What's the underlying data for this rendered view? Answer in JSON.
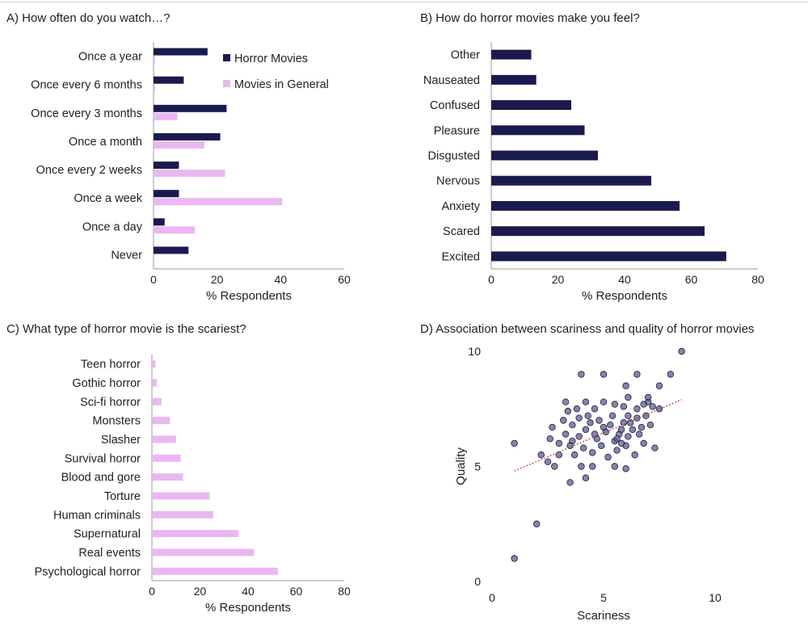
{
  "colors": {
    "horror": "#1b1a4f",
    "general": "#e9b8f1",
    "scatter_fill": "#5c5c8a",
    "scatter_stroke": "#1b1a4f",
    "trend": "#c0392b",
    "axis": "#9a9a9a"
  },
  "chart_data": [
    {
      "id": "A",
      "type": "bar",
      "title": "A) How often do you watch…?",
      "categories": [
        "Once a year",
        "Once every 6 months",
        "Once every 3 months",
        "Once a month",
        "Once every 2 weeks",
        "Once a week",
        "Once a day",
        "Never"
      ],
      "series": [
        {
          "name": "Horror Movies",
          "values": [
            17,
            9.5,
            23,
            21,
            8,
            8,
            3.5,
            11
          ]
        },
        {
          "name": "Movies in General",
          "values": [
            0.5,
            0.5,
            7.5,
            16,
            22.5,
            40.5,
            13,
            0
          ]
        }
      ],
      "xlabel": "% Respondents",
      "xlim": [
        0,
        60
      ],
      "xticks": [
        0,
        20,
        40,
        60
      ],
      "legend": "top-right"
    },
    {
      "id": "B",
      "type": "bar",
      "title": "B) How do horror movies make you feel?",
      "categories": [
        "Other",
        "Nauseated",
        "Confused",
        "Pleasure",
        "Disgusted",
        "Nervous",
        "Anxiety",
        "Scared",
        "Excited"
      ],
      "values": [
        12,
        13.5,
        24,
        28,
        32,
        48,
        56.5,
        64,
        70.5
      ],
      "xlabel": "% Respondents",
      "xlim": [
        0,
        80
      ],
      "xticks": [
        0,
        20,
        40,
        60,
        80
      ]
    },
    {
      "id": "C",
      "type": "bar",
      "title": "C) What type of horror movie is the scariest?",
      "categories": [
        "Teen horror",
        "Gothic horror",
        "Sci-fi horror",
        "Monsters",
        "Slasher",
        "Survival horror",
        "Blood and gore",
        "Torture",
        "Human criminals",
        "Supernatural",
        "Real events",
        "Psychological horror"
      ],
      "values": [
        1.5,
        2,
        4,
        7.5,
        10,
        12,
        13,
        24,
        25.5,
        36,
        42.5,
        52.5
      ],
      "xlabel": "% Respondents",
      "xlim": [
        0,
        80
      ],
      "xticks": [
        0,
        20,
        40,
        60,
        80
      ]
    },
    {
      "id": "D",
      "type": "scatter",
      "title": "D) Association between scariness and quality of horror movies",
      "xlabel": "Scariness",
      "ylabel": "Quality",
      "xlim": [
        0,
        10
      ],
      "ylim": [
        0,
        10
      ],
      "xticks": [
        0,
        5,
        10
      ],
      "yticks": [
        0,
        5,
        10
      ],
      "trendline": {
        "x": [
          1,
          8.5
        ],
        "y": [
          4.8,
          7.9
        ]
      },
      "points": [
        [
          1,
          6
        ],
        [
          1,
          1
        ],
        [
          2,
          2.5
        ],
        [
          3.5,
          4.3
        ],
        [
          8.5,
          10
        ],
        [
          4,
          9
        ],
        [
          5,
          9
        ],
        [
          6.5,
          9
        ],
        [
          6,
          8.5
        ],
        [
          8,
          9
        ],
        [
          7.5,
          8.5
        ],
        [
          2.2,
          5.5
        ],
        [
          2.5,
          5.2
        ],
        [
          2.8,
          5
        ],
        [
          3,
          5.5
        ],
        [
          2.6,
          6.2
        ],
        [
          2.7,
          6.7
        ],
        [
          3.3,
          7.8
        ],
        [
          3.2,
          7
        ],
        [
          3.8,
          7.5
        ],
        [
          4.2,
          7.8
        ],
        [
          4.6,
          7.5
        ],
        [
          5,
          7.8
        ],
        [
          5.5,
          7.7
        ],
        [
          6.1,
          8
        ],
        [
          5.9,
          7.6
        ],
        [
          6.5,
          7.5
        ],
        [
          7,
          7.8
        ],
        [
          7,
          8
        ],
        [
          6.8,
          7.7
        ],
        [
          7.2,
          7.6
        ],
        [
          7.5,
          7.5
        ],
        [
          3,
          6
        ],
        [
          3.3,
          6.4
        ],
        [
          3.6,
          6.8
        ],
        [
          3.9,
          6.3
        ],
        [
          4.2,
          6.6
        ],
        [
          4.4,
          6.9
        ],
        [
          4.7,
          6.2
        ],
        [
          5.1,
          6.5
        ],
        [
          5.3,
          6.8
        ],
        [
          5.5,
          6.1
        ],
        [
          5.7,
          6.4
        ],
        [
          5.9,
          6.9
        ],
        [
          6.1,
          6.3
        ],
        [
          6.3,
          6.6
        ],
        [
          6.5,
          7.1
        ],
        [
          6.7,
          6.7
        ],
        [
          6.9,
          7.2
        ],
        [
          7.1,
          6.8
        ],
        [
          3.7,
          5.5
        ],
        [
          4.1,
          5.8
        ],
        [
          4.5,
          5.6
        ],
        [
          4.9,
          5.9
        ],
        [
          5.2,
          5.4
        ],
        [
          5.6,
          5.7
        ],
        [
          6,
          5.9
        ],
        [
          6.4,
          5.5
        ],
        [
          6.8,
          6
        ],
        [
          7.3,
          5.8
        ],
        [
          4,
          5
        ],
        [
          4.5,
          5
        ],
        [
          5.5,
          5
        ],
        [
          6,
          4.9
        ],
        [
          4.2,
          4.5
        ],
        [
          3.6,
          6.1
        ],
        [
          4.3,
          7.2
        ],
        [
          4.8,
          7
        ],
        [
          5.4,
          7.2
        ],
        [
          5.8,
          6.6
        ],
        [
          6.2,
          6.9
        ],
        [
          3.4,
          7.4
        ],
        [
          3.9,
          7.1
        ],
        [
          4.6,
          6.4
        ],
        [
          5,
          6.7
        ],
        [
          5.6,
          6.2
        ],
        [
          6.1,
          7.2
        ],
        [
          6.6,
          6.4
        ],
        [
          3.5,
          5.9
        ],
        [
          5.8,
          6
        ]
      ]
    }
  ]
}
